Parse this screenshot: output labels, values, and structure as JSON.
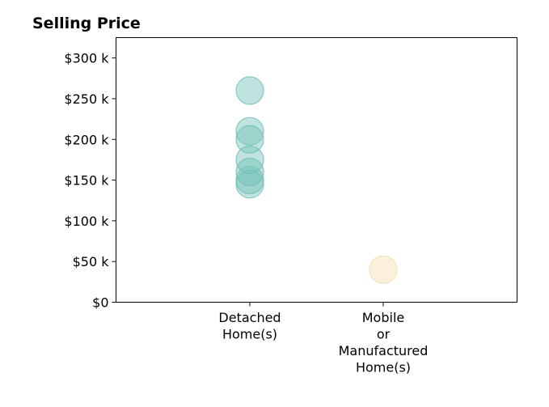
{
  "chart_data": {
    "type": "scatter",
    "title": "Selling Price",
    "xlabel": "",
    "ylabel": "",
    "categories": [
      [
        "Detached",
        "Home(s)"
      ],
      [
        "Mobile",
        "or",
        "Manufactured",
        "Home(s)"
      ]
    ],
    "ylim": [
      0,
      325000
    ],
    "yticks": [
      {
        "value": 0,
        "label": "$0"
      },
      {
        "value": 50000,
        "label": "$50 k"
      },
      {
        "value": 100000,
        "label": "$100 k"
      },
      {
        "value": 150000,
        "label": "$150 k"
      },
      {
        "value": 200000,
        "label": "$200 k"
      },
      {
        "value": 250000,
        "label": "$250 k"
      },
      {
        "value": 300000,
        "label": "$300 k"
      }
    ],
    "grid": false,
    "series": [
      {
        "category_index": 0,
        "color": "#74c1b8",
        "values": [
          260000,
          210000,
          200000,
          175000,
          160000,
          150000,
          145000
        ]
      },
      {
        "category_index": 1,
        "color": "#f3deb0",
        "values": [
          40000
        ]
      }
    ]
  }
}
